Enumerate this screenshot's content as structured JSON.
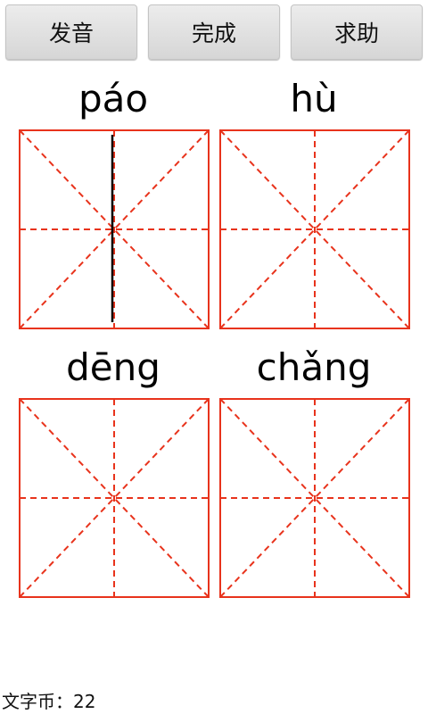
{
  "toolbar": {
    "pronounce_label": "发音",
    "done_label": "完成",
    "help_label": "求助"
  },
  "cells": [
    {
      "pinyin": "páo"
    },
    {
      "pinyin": "hù"
    },
    {
      "pinyin": "dēng"
    },
    {
      "pinyin": "chǎng"
    }
  ],
  "footer": {
    "coins_label": "文字币：22"
  },
  "colors": {
    "grid_line": "#e8331c",
    "stroke": "#000000"
  }
}
